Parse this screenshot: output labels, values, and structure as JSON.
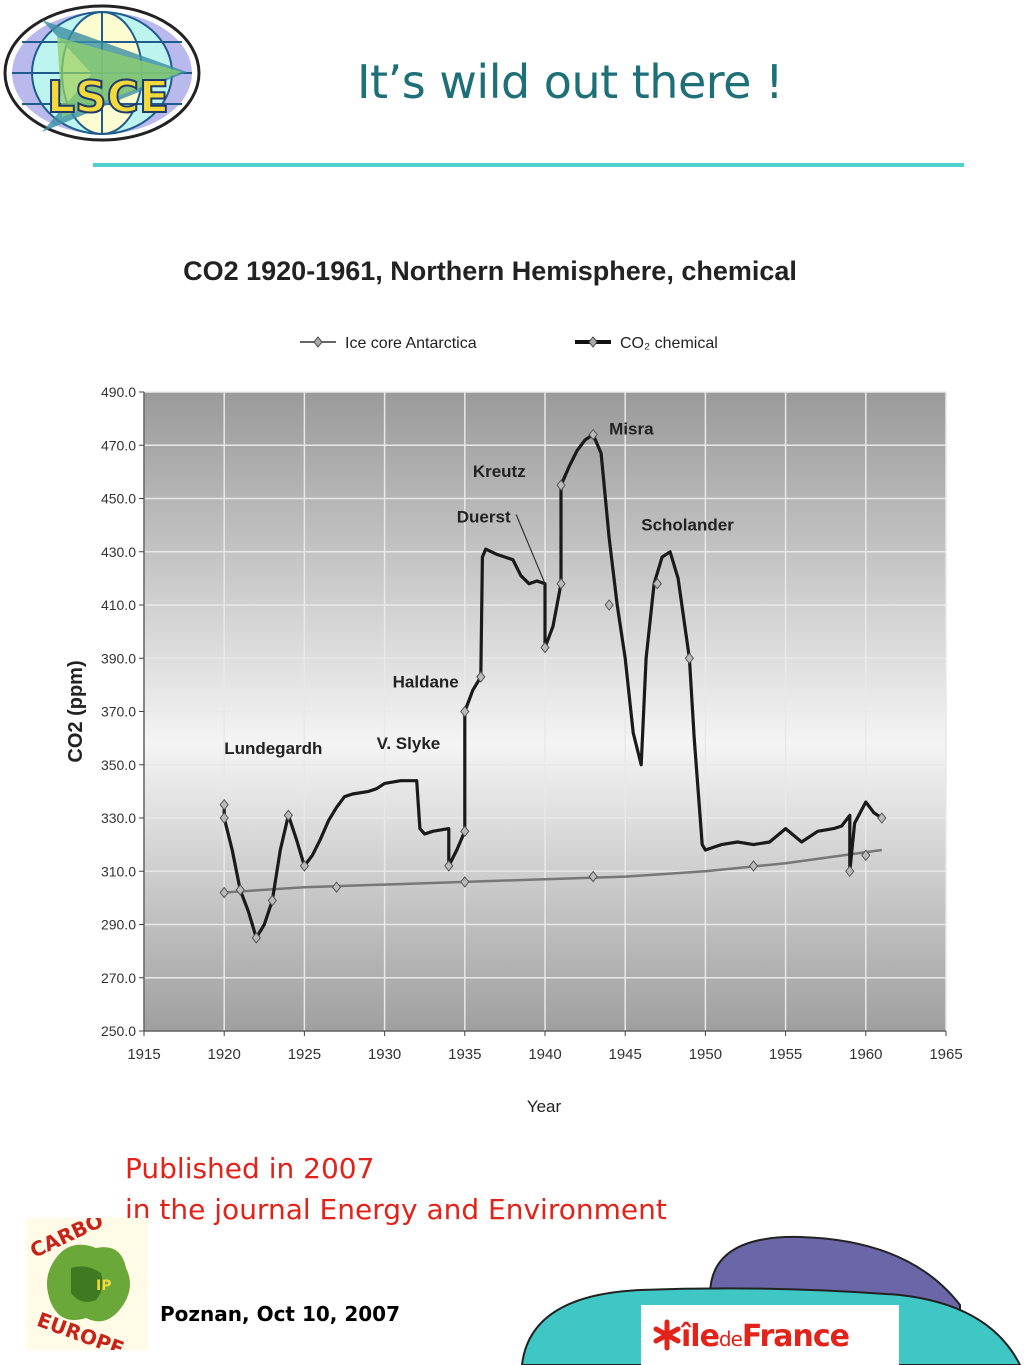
{
  "slide": {
    "title": "It’s wild out there !",
    "caption_line1": "Published in 2007",
    "caption_line2": "in the journal Energy and Environment",
    "footer_date": "Poznan, Oct 10, 2007"
  },
  "logos": {
    "top_left_name": "LSCE",
    "bottom_left_name": "CARBO EUROPE IP",
    "bottom_right_prefix": "île",
    "bottom_right_de": "de",
    "bottom_right_suffix": "France"
  },
  "colors": {
    "title": "#1d6f78",
    "rule": "#4fd0cd",
    "caption": "#e2231a",
    "chemical_line": "#1a1a1a",
    "ice_core_line": "#777777",
    "deco_purple": "#6b66a8",
    "deco_cyan": "#3fc7c6"
  },
  "chart_data": {
    "type": "line",
    "title": "CO2 1920-1961, Northern Hemisphere, chemical",
    "xlabel": "Year",
    "ylabel": "CO2 (ppm)",
    "xlim": [
      1915,
      1965
    ],
    "ylim": [
      250,
      490
    ],
    "x_ticks": [
      1915,
      1920,
      1925,
      1930,
      1935,
      1940,
      1945,
      1950,
      1955,
      1960,
      1965
    ],
    "y_ticks": [
      "250.0",
      "270.0",
      "290.0",
      "310.0",
      "330.0",
      "350.0",
      "370.0",
      "390.0",
      "410.0",
      "430.0",
      "450.0",
      "470.0",
      "490.0"
    ],
    "grid": true,
    "legend_position": "top",
    "series": [
      {
        "name": "Ice core Antarctica",
        "points": [
          [
            1920,
            302
          ],
          [
            1925,
            304
          ],
          [
            1930,
            305
          ],
          [
            1935,
            306
          ],
          [
            1940,
            307
          ],
          [
            1945,
            308
          ],
          [
            1950,
            310
          ],
          [
            1955,
            313
          ],
          [
            1961,
            318
          ]
        ],
        "markers": [
          [
            1920,
            302
          ],
          [
            1927,
            304
          ],
          [
            1935,
            306
          ],
          [
            1943,
            308
          ],
          [
            1953,
            312
          ],
          [
            1960,
            316
          ]
        ]
      },
      {
        "name": "CO₂ chemical",
        "points": [
          [
            1920,
            335
          ],
          [
            1920,
            330
          ],
          [
            1920.5,
            318
          ],
          [
            1921,
            303
          ],
          [
            1921.5,
            295
          ],
          [
            1922,
            285
          ],
          [
            1922.5,
            290
          ],
          [
            1923,
            299
          ],
          [
            1923.5,
            318
          ],
          [
            1924,
            331
          ],
          [
            1924.5,
            322
          ],
          [
            1925,
            312
          ],
          [
            1925.5,
            316
          ],
          [
            1926,
            322
          ],
          [
            1926.5,
            329
          ],
          [
            1927,
            334
          ],
          [
            1927.5,
            338
          ],
          [
            1928,
            339
          ],
          [
            1929,
            340
          ],
          [
            1929.5,
            341
          ],
          [
            1930,
            343
          ],
          [
            1931,
            344
          ],
          [
            1932,
            344
          ],
          [
            1932.2,
            326
          ],
          [
            1932.5,
            324
          ],
          [
            1933,
            325
          ],
          [
            1934,
            326
          ],
          [
            1934,
            312
          ],
          [
            1934.5,
            318
          ],
          [
            1935,
            325
          ],
          [
            1935,
            370
          ],
          [
            1935.5,
            378
          ],
          [
            1936,
            383
          ],
          [
            1936.1,
            428
          ],
          [
            1936.3,
            431
          ],
          [
            1937,
            429
          ],
          [
            1938,
            427
          ],
          [
            1938.5,
            421
          ],
          [
            1939,
            418
          ],
          [
            1939.5,
            419
          ],
          [
            1940,
            418
          ],
          [
            1940,
            394
          ],
          [
            1940.5,
            402
          ],
          [
            1941,
            418
          ],
          [
            1941,
            455
          ],
          [
            1941.5,
            462
          ],
          [
            1942,
            468
          ],
          [
            1942.5,
            472
          ],
          [
            1943,
            474
          ],
          [
            1943.5,
            467
          ],
          [
            1944,
            435
          ],
          [
            1944.5,
            410
          ],
          [
            1945,
            390
          ],
          [
            1945.5,
            362
          ],
          [
            1946,
            350
          ],
          [
            1946.3,
            390
          ],
          [
            1946.8,
            418
          ],
          [
            1947.3,
            428
          ],
          [
            1947.8,
            430
          ],
          [
            1948.3,
            420
          ],
          [
            1949,
            390
          ],
          [
            1949.3,
            360
          ],
          [
            1949.8,
            320
          ],
          [
            1950,
            318
          ],
          [
            1951,
            320
          ],
          [
            1952,
            321
          ],
          [
            1953,
            320
          ],
          [
            1954,
            321
          ],
          [
            1955,
            326
          ],
          [
            1956,
            321
          ],
          [
            1957,
            325
          ],
          [
            1958,
            326
          ],
          [
            1958.5,
            327
          ],
          [
            1959,
            331
          ],
          [
            1959,
            310
          ],
          [
            1959.3,
            328
          ],
          [
            1960,
            336
          ],
          [
            1960.5,
            332
          ],
          [
            1961,
            330
          ]
        ],
        "markers": [
          [
            1920,
            335
          ],
          [
            1920,
            330
          ],
          [
            1921,
            303
          ],
          [
            1922,
            285
          ],
          [
            1923,
            299
          ],
          [
            1924,
            331
          ],
          [
            1925,
            312
          ],
          [
            1934,
            312
          ],
          [
            1935,
            325
          ],
          [
            1935,
            370
          ],
          [
            1936,
            383
          ],
          [
            1940,
            394
          ],
          [
            1941,
            418
          ],
          [
            1941,
            455
          ],
          [
            1943,
            474
          ],
          [
            1944,
            410
          ],
          [
            1947,
            418
          ],
          [
            1949,
            390
          ],
          [
            1959,
            310
          ],
          [
            1961,
            330
          ]
        ]
      }
    ],
    "annotations": [
      {
        "text": "Lundegardh",
        "x": 1920,
        "y": 354
      },
      {
        "text": "V. Slyke",
        "x": 1929.5,
        "y": 356
      },
      {
        "text": "Haldane",
        "x": 1930.5,
        "y": 379
      },
      {
        "text": "Duerst",
        "x": 1934.5,
        "y": 441
      },
      {
        "text": "Kreutz",
        "x": 1935.5,
        "y": 458
      },
      {
        "text": "Misra",
        "x": 1944,
        "y": 474
      },
      {
        "text": "Scholander",
        "x": 1946,
        "y": 438
      }
    ]
  }
}
